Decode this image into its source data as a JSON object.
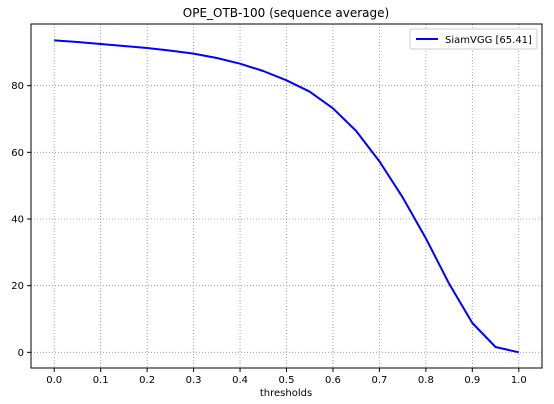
{
  "chart_data": {
    "type": "line",
    "title": "OPE_OTB-100 (sequence average)",
    "xlabel": "thresholds",
    "ylabel": "",
    "xlim": [
      -0.05,
      1.05
    ],
    "ylim": [
      -4.7,
      98.5
    ],
    "x_ticks": [
      0.0,
      0.1,
      0.2,
      0.3,
      0.4,
      0.5,
      0.6,
      0.7,
      0.8,
      0.9,
      1.0
    ],
    "x_tick_labels": [
      "0.0",
      "0.1",
      "0.2",
      "0.3",
      "0.4",
      "0.5",
      "0.6",
      "0.7",
      "0.8",
      "0.9",
      "1.0"
    ],
    "y_ticks": [
      0,
      20,
      40,
      60,
      80
    ],
    "y_tick_labels": [
      "0",
      "20",
      "40",
      "60",
      "80"
    ],
    "grid": true,
    "legend_position": "top-right",
    "series": [
      {
        "name": "SiamVGG [65.41]",
        "color": "#0000ff",
        "x": [
          0.0,
          0.05,
          0.1,
          0.15,
          0.2,
          0.25,
          0.3,
          0.35,
          0.4,
          0.45,
          0.5,
          0.55,
          0.6,
          0.65,
          0.7,
          0.75,
          0.8,
          0.85,
          0.9,
          0.95,
          1.0
        ],
        "y": [
          93.6,
          93.1,
          92.5,
          91.9,
          91.3,
          90.5,
          89.6,
          88.3,
          86.6,
          84.4,
          81.6,
          78.2,
          73.2,
          66.4,
          57.3,
          46.5,
          34.2,
          20.6,
          8.8,
          1.6,
          0.0
        ]
      }
    ]
  }
}
